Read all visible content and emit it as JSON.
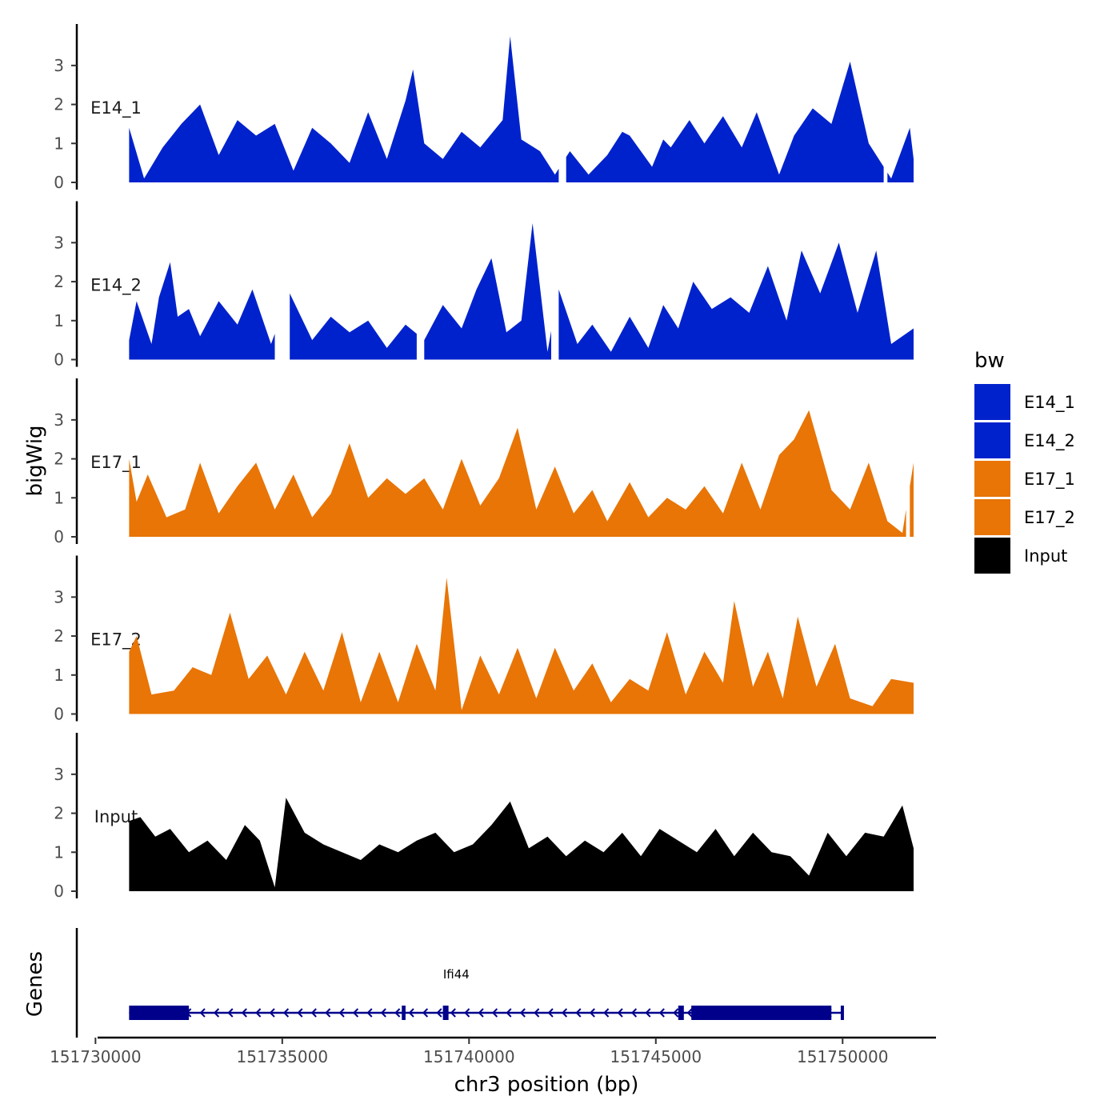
{
  "chart_data": {
    "type": "area",
    "xlabel": "chr3 position (bp)",
    "ylabel": "bigWig",
    "genes_label": "Genes",
    "x_range": [
      151729500,
      151752500
    ],
    "x_ticks": [
      151730000,
      151735000,
      151740000,
      151745000,
      151750000
    ],
    "x_tick_labels": [
      "151730000",
      "151735000",
      "151740000",
      "151745000",
      "151750000"
    ],
    "y_range": [
      0,
      3.9
    ],
    "y_ticks": [
      0,
      1,
      2,
      3
    ],
    "y_tick_labels": [
      "0",
      "1",
      "2",
      "3"
    ],
    "legend_title": "bw",
    "legend": [
      {
        "name": "E14_1",
        "color": "#0022cc"
      },
      {
        "name": "E14_2",
        "color": "#0022cc"
      },
      {
        "name": "E17_1",
        "color": "#e87506"
      },
      {
        "name": "E17_2",
        "color": "#e87506"
      },
      {
        "name": "Input",
        "color": "#000000"
      }
    ],
    "series": [
      {
        "name": "E14_1",
        "color": "#0022cc",
        "x": [
          151730900,
          151731300,
          151731800,
          151732300,
          151732800,
          151733300,
          151733800,
          151734300,
          151734800,
          151735300,
          151735800,
          151736300,
          151736800,
          151737300,
          151737800,
          151738300,
          151738500,
          151738800,
          151739300,
          151739800,
          151740300,
          151740900,
          151741100,
          151741400,
          151741900,
          151742300,
          151742700,
          151743200,
          151743700,
          151744100,
          151744300,
          151744900,
          151745200,
          151745400,
          151745900,
          151746300,
          151746800,
          151747300,
          151747700,
          151748300,
          151748700,
          151749200,
          151749700,
          151750200,
          151750700,
          151751300,
          151751800,
          151751900
        ],
        "values": [
          1.4,
          0.1,
          0.9,
          1.5,
          2.0,
          0.7,
          1.6,
          1.2,
          1.5,
          0.3,
          1.4,
          1.0,
          0.5,
          1.8,
          0.6,
          2.1,
          2.9,
          1.0,
          0.6,
          1.3,
          0.9,
          1.6,
          3.75,
          1.1,
          0.8,
          0.2,
          0.8,
          0.2,
          0.7,
          1.3,
          1.2,
          0.4,
          1.1,
          0.9,
          1.6,
          1.0,
          1.7,
          0.9,
          1.8,
          0.2,
          1.2,
          1.9,
          1.5,
          3.1,
          1.0,
          0.1,
          1.4,
          0.6
        ],
        "gaps": [
          [
            151742400,
            151742600
          ],
          [
            151743700,
            151743750
          ],
          [
            151744900,
            151745100
          ],
          [
            151751100,
            151751200
          ]
        ]
      },
      {
        "name": "E14_2",
        "color": "#0022cc",
        "x": [
          151730900,
          151731100,
          151731500,
          151731700,
          151732000,
          151732200,
          151732500,
          151732800,
          151733300,
          151733800,
          151734200,
          151734700,
          151735200,
          151735800,
          151736300,
          151736800,
          151737300,
          151737800,
          151738300,
          151738800,
          151739300,
          151739800,
          151740200,
          151740600,
          151741000,
          151741400,
          151741700,
          151742100,
          151742400,
          151742900,
          151743300,
          151743800,
          151744300,
          151744800,
          151745200,
          151745600,
          151746000,
          151746500,
          151747000,
          151747500,
          151748000,
          151748500,
          151748900,
          151749400,
          151749900,
          151750400,
          151750900,
          151751300,
          151751900
        ],
        "values": [
          0.5,
          1.5,
          0.4,
          1.6,
          2.5,
          1.1,
          1.3,
          0.6,
          1.5,
          0.9,
          1.8,
          0.4,
          1.7,
          0.5,
          1.1,
          0.7,
          1.0,
          0.3,
          0.9,
          0.5,
          1.4,
          0.8,
          1.8,
          2.6,
          0.7,
          1.0,
          3.5,
          0.2,
          1.8,
          0.4,
          0.9,
          0.2,
          1.1,
          0.3,
          1.4,
          0.8,
          2.0,
          1.3,
          1.6,
          1.2,
          2.4,
          1.0,
          2.8,
          1.7,
          3.0,
          1.2,
          2.8,
          0.4,
          0.8
        ],
        "gaps": [
          [
            151734800,
            151735200
          ],
          [
            151737300,
            151737400
          ],
          [
            151738600,
            151738800
          ],
          [
            151742200,
            151742400
          ],
          [
            151744800,
            151745000
          ]
        ]
      },
      {
        "name": "E17_1",
        "color": "#e87506",
        "x": [
          151730900,
          151731100,
          151731400,
          151731900,
          151732400,
          151732800,
          151733300,
          151733800,
          151734300,
          151734800,
          151735300,
          151735800,
          151736300,
          151736800,
          151737300,
          151737800,
          151738300,
          151738800,
          151739300,
          151739800,
          151740300,
          151740800,
          151741300,
          151741800,
          151742300,
          151742800,
          151743300,
          151743700,
          151744300,
          151744800,
          151745300,
          151745800,
          151746300,
          151746800,
          151747300,
          151747800,
          151748300,
          151748700,
          151749100,
          151749700,
          151750200,
          151750700,
          151751200,
          151751600,
          151751900
        ],
        "values": [
          2.0,
          0.9,
          1.6,
          0.5,
          0.7,
          1.9,
          0.6,
          1.3,
          1.9,
          0.7,
          1.6,
          0.5,
          1.1,
          2.4,
          1.0,
          1.5,
          1.1,
          1.5,
          0.7,
          2.0,
          0.8,
          1.5,
          2.8,
          0.7,
          1.8,
          0.6,
          1.2,
          0.4,
          1.4,
          0.5,
          1.0,
          0.7,
          1.3,
          0.6,
          1.9,
          0.7,
          2.1,
          2.5,
          3.25,
          1.2,
          0.7,
          1.9,
          0.4,
          0.1,
          1.9
        ],
        "gaps": [
          [
            151751700,
            151751800
          ]
        ]
      },
      {
        "name": "E17_2",
        "color": "#e87506",
        "x": [
          151730900,
          151731100,
          151731500,
          151732100,
          151732600,
          151733100,
          151733600,
          151734100,
          151734600,
          151735100,
          151735600,
          151736100,
          151736600,
          151737100,
          151737600,
          151738100,
          151738600,
          151739100,
          151739400,
          151739800,
          151740300,
          151740800,
          151741300,
          151741800,
          151742300,
          151742800,
          151743300,
          151743800,
          151744300,
          151744800,
          151745300,
          151745800,
          151746300,
          151746800,
          151747100,
          151747600,
          151748000,
          151748400,
          151748800,
          151749300,
          151749800,
          151750200,
          151750800,
          151751300,
          151751900
        ],
        "values": [
          1.6,
          2.0,
          0.5,
          0.6,
          1.2,
          1.0,
          2.6,
          0.9,
          1.5,
          0.5,
          1.6,
          0.6,
          2.1,
          0.3,
          1.6,
          0.3,
          1.8,
          0.6,
          3.5,
          0.1,
          1.5,
          0.5,
          1.7,
          0.4,
          1.7,
          0.6,
          1.3,
          0.3,
          0.9,
          0.6,
          2.1,
          0.5,
          1.6,
          0.8,
          2.9,
          0.7,
          1.6,
          0.4,
          2.5,
          0.7,
          1.8,
          0.4,
          0.2,
          0.9,
          0.8
        ],
        "gaps": []
      },
      {
        "name": "Input",
        "color": "#000000",
        "x": [
          151730900,
          151731200,
          151731600,
          151732000,
          151732500,
          151733000,
          151733500,
          151734000,
          151734400,
          151734800,
          151735100,
          151735600,
          151736100,
          151736600,
          151737100,
          151737600,
          151738100,
          151738600,
          151739100,
          151739600,
          151740100,
          151740600,
          151741100,
          151741600,
          151742100,
          151742600,
          151743100,
          151743600,
          151744100,
          151744600,
          151745100,
          151745600,
          151746100,
          151746600,
          151747100,
          151747600,
          151748100,
          151748600,
          151749100,
          151749600,
          151750100,
          151750600,
          151751100,
          151751600,
          151751900
        ],
        "values": [
          1.8,
          1.9,
          1.4,
          1.6,
          1.0,
          1.3,
          0.8,
          1.7,
          1.3,
          0.1,
          2.4,
          1.5,
          1.2,
          1.0,
          0.8,
          1.2,
          1.0,
          1.3,
          1.5,
          1.0,
          1.2,
          1.7,
          2.3,
          1.1,
          1.4,
          0.9,
          1.3,
          1.0,
          1.5,
          0.9,
          1.6,
          1.3,
          1.0,
          1.6,
          0.9,
          1.5,
          1.0,
          0.9,
          0.4,
          1.5,
          0.9,
          1.5,
          1.4,
          2.2,
          1.1
        ],
        "gaps": []
      }
    ],
    "genes": [
      {
        "name": "Ifi44",
        "start": 151730900,
        "end": 151750000,
        "strand": "-",
        "exons": [
          [
            151730900,
            151732500
          ],
          [
            151738200,
            151738300
          ],
          [
            151739300,
            151739450
          ],
          [
            151745600,
            151745750
          ],
          [
            151745950,
            151749700
          ],
          [
            151749950,
            151750000
          ]
        ]
      }
    ]
  }
}
